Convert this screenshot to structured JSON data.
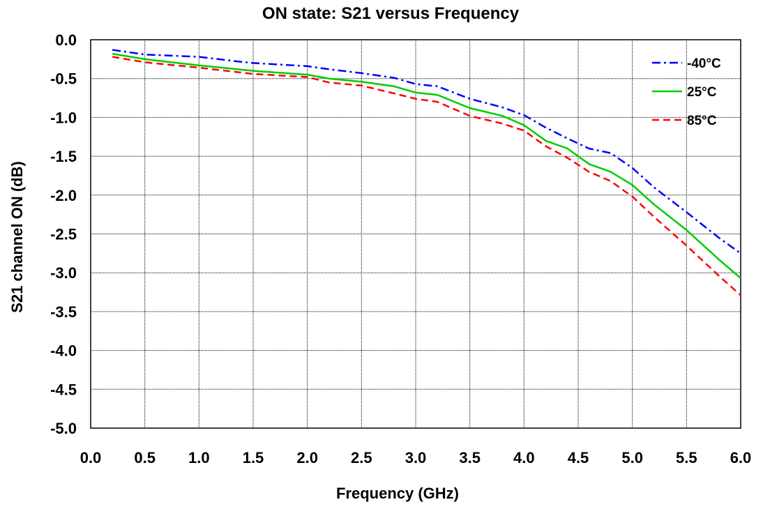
{
  "chart_data": {
    "type": "line",
    "title": "ON state: S21 versus Frequency",
    "xlabel": "Frequency (GHz)",
    "ylabel": "S21 channel ON (dB)",
    "xlim": [
      0.0,
      6.0
    ],
    "ylim": [
      -5.0,
      0.0
    ],
    "x_ticks": [
      "0.0",
      "0.5",
      "1.0",
      "1.5",
      "2.0",
      "2.5",
      "3.0",
      "3.5",
      "4.0",
      "4.5",
      "5.0",
      "5.5",
      "6.0"
    ],
    "y_ticks": [
      "0.0",
      "-0.5",
      "-1.0",
      "-1.5",
      "-2.0",
      "-2.5",
      "-3.0",
      "-3.5",
      "-4.0",
      "-4.5",
      "-5.0"
    ],
    "grid": true,
    "legend_position": "top-right",
    "series": [
      {
        "name": "-40°C",
        "color": "#0000ff",
        "dash": "dash-dot",
        "x": [
          0.2,
          0.5,
          1.0,
          1.3,
          1.5,
          2.0,
          2.2,
          2.5,
          2.8,
          3.0,
          3.2,
          3.5,
          3.8,
          4.0,
          4.2,
          4.4,
          4.6,
          4.8,
          5.0,
          5.2,
          5.5,
          5.8,
          6.0
        ],
        "y": [
          -0.13,
          -0.19,
          -0.22,
          -0.27,
          -0.3,
          -0.34,
          -0.38,
          -0.43,
          -0.49,
          -0.57,
          -0.6,
          -0.76,
          -0.87,
          -0.97,
          -1.13,
          -1.27,
          -1.4,
          -1.46,
          -1.65,
          -1.9,
          -2.22,
          -2.55,
          -2.75
        ]
      },
      {
        "name": "25°C",
        "color": "#00cc00",
        "dash": "solid",
        "x": [
          0.2,
          0.5,
          1.0,
          1.5,
          2.0,
          2.2,
          2.5,
          2.8,
          3.0,
          3.2,
          3.5,
          3.8,
          4.0,
          4.2,
          4.4,
          4.6,
          4.8,
          5.0,
          5.2,
          5.5,
          5.8,
          6.0
        ],
        "y": [
          -0.18,
          -0.25,
          -0.33,
          -0.4,
          -0.45,
          -0.5,
          -0.54,
          -0.6,
          -0.68,
          -0.71,
          -0.88,
          -0.98,
          -1.1,
          -1.3,
          -1.4,
          -1.6,
          -1.7,
          -1.87,
          -2.12,
          -2.45,
          -2.83,
          -3.07
        ]
      },
      {
        "name": "85°C",
        "color": "#ff0000",
        "dash": "dashed",
        "x": [
          0.2,
          0.5,
          1.0,
          1.5,
          2.0,
          2.2,
          2.5,
          2.8,
          3.0,
          3.2,
          3.5,
          3.8,
          4.0,
          4.2,
          4.4,
          4.6,
          4.8,
          5.0,
          5.2,
          5.5,
          5.8,
          6.0
        ],
        "y": [
          -0.22,
          -0.29,
          -0.36,
          -0.44,
          -0.48,
          -0.55,
          -0.59,
          -0.69,
          -0.76,
          -0.8,
          -0.98,
          -1.08,
          -1.17,
          -1.37,
          -1.52,
          -1.7,
          -1.82,
          -2.02,
          -2.28,
          -2.65,
          -3.04,
          -3.29
        ]
      }
    ]
  }
}
